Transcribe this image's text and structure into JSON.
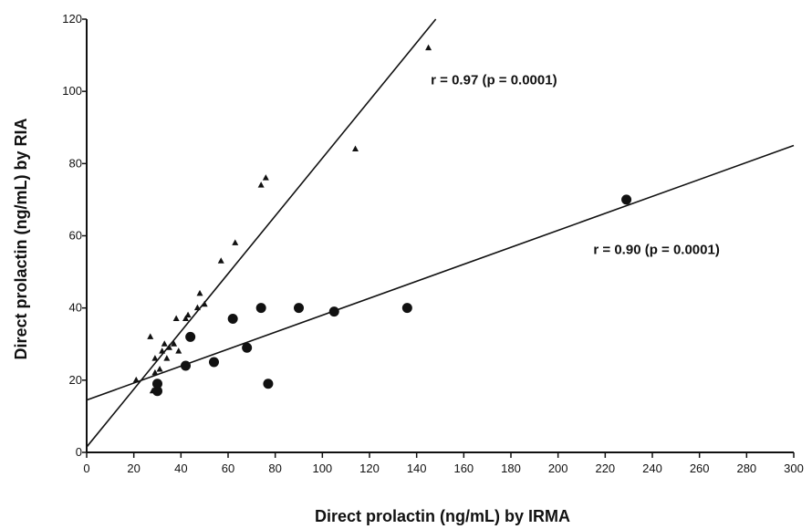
{
  "chart_data": {
    "type": "scatter",
    "xlabel": "Direct prolactin (ng/mL) by IRMA",
    "ylabel": "Direct prolactin (ng/mL) by RIA",
    "xlim": [
      0,
      300
    ],
    "ylim": [
      0,
      120
    ],
    "x_ticks": [
      0,
      20,
      40,
      60,
      80,
      100,
      120,
      140,
      160,
      180,
      200,
      220,
      240,
      260,
      280,
      300
    ],
    "y_ticks": [
      0,
      20,
      40,
      60,
      80,
      100,
      120
    ],
    "grid": false,
    "series": [
      {
        "marker": "triangle",
        "points": [
          [
            21,
            20
          ],
          [
            27,
            32
          ],
          [
            28,
            17
          ],
          [
            29,
            22
          ],
          [
            29,
            26
          ],
          [
            31,
            23
          ],
          [
            32,
            28
          ],
          [
            33,
            30
          ],
          [
            34,
            26
          ],
          [
            35,
            29
          ],
          [
            37,
            30
          ],
          [
            38,
            37
          ],
          [
            39,
            28
          ],
          [
            42,
            37
          ],
          [
            43,
            38
          ],
          [
            47,
            40
          ],
          [
            48,
            44
          ],
          [
            50,
            41
          ],
          [
            57,
            53
          ],
          [
            63,
            58
          ],
          [
            74,
            74
          ],
          [
            76,
            76
          ],
          [
            114,
            84
          ],
          [
            145,
            112
          ]
        ],
        "fit": {
          "slope": 0.8,
          "intercept": 1.5
        }
      },
      {
        "marker": "circle",
        "points": [
          [
            30,
            17
          ],
          [
            30,
            19
          ],
          [
            42,
            24
          ],
          [
            44,
            32
          ],
          [
            54,
            25
          ],
          [
            62,
            37
          ],
          [
            68,
            29
          ],
          [
            74,
            40
          ],
          [
            77,
            19
          ],
          [
            90,
            40
          ],
          [
            105,
            39
          ],
          [
            136,
            40
          ],
          [
            229,
            70
          ]
        ],
        "fit": {
          "slope": 0.235,
          "intercept": 14.5
        }
      }
    ],
    "annotations": [
      {
        "text": "r = 0.97 (p = 0.0001)",
        "x": 146,
        "y": 102
      },
      {
        "text": "r = 0.90 (p = 0.0001)",
        "x": 215,
        "y": 55
      }
    ]
  }
}
